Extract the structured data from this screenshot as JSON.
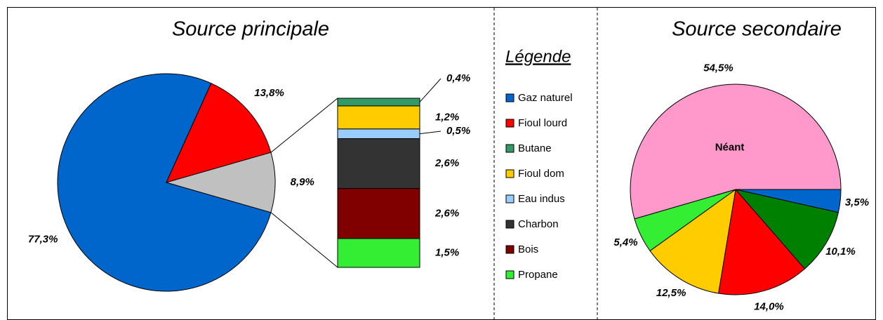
{
  "chart_data": [
    {
      "type": "pie_of_bar",
      "title": "Source principale",
      "values": [
        77.3,
        13.8,
        8.9
      ],
      "value_labels": [
        "77,3%",
        "13,8%",
        "8,9%"
      ],
      "colors": [
        "#0066cc",
        "#ff0000",
        "#c0c0c0"
      ],
      "bar": {
        "values": [
          0.4,
          1.2,
          0.5,
          2.6,
          2.6,
          1.5
        ],
        "value_labels": [
          "0,4%",
          "1,2%",
          "0,5%",
          "2,6%",
          "2,6%",
          "1,5%"
        ],
        "colors": [
          "#339966",
          "#ffcc00",
          "#99ccff",
          "#333333",
          "#800000",
          "#33ee33"
        ]
      }
    },
    {
      "type": "pie",
      "title": "Source secondaire",
      "values": [
        3.5,
        10.1,
        14.0,
        12.5,
        5.4,
        54.5
      ],
      "value_labels": [
        "3,5%",
        "10,1%",
        "14,0%",
        "12,5%",
        "5,4%",
        "54,5%"
      ],
      "colors": [
        "#0066cc",
        "#008000",
        "#ff0000",
        "#ffcc00",
        "#33ee33",
        "#ff99cc"
      ],
      "annotation": "Néant"
    }
  ],
  "legend": {
    "title": "Légende",
    "items": [
      {
        "name": "Gaz naturel",
        "color": "#0066cc"
      },
      {
        "name": "Fioul lourd",
        "color": "#ff0000"
      },
      {
        "name": "Butane",
        "color": "#339966"
      },
      {
        "name": "Fioul dom",
        "color": "#ffcc00"
      },
      {
        "name": "Eau indus",
        "color": "#99ccff"
      },
      {
        "name": "Charbon",
        "color": "#333333"
      },
      {
        "name": "Bois",
        "color": "#800000"
      },
      {
        "name": "Propane",
        "color": "#33ee33"
      }
    ]
  }
}
